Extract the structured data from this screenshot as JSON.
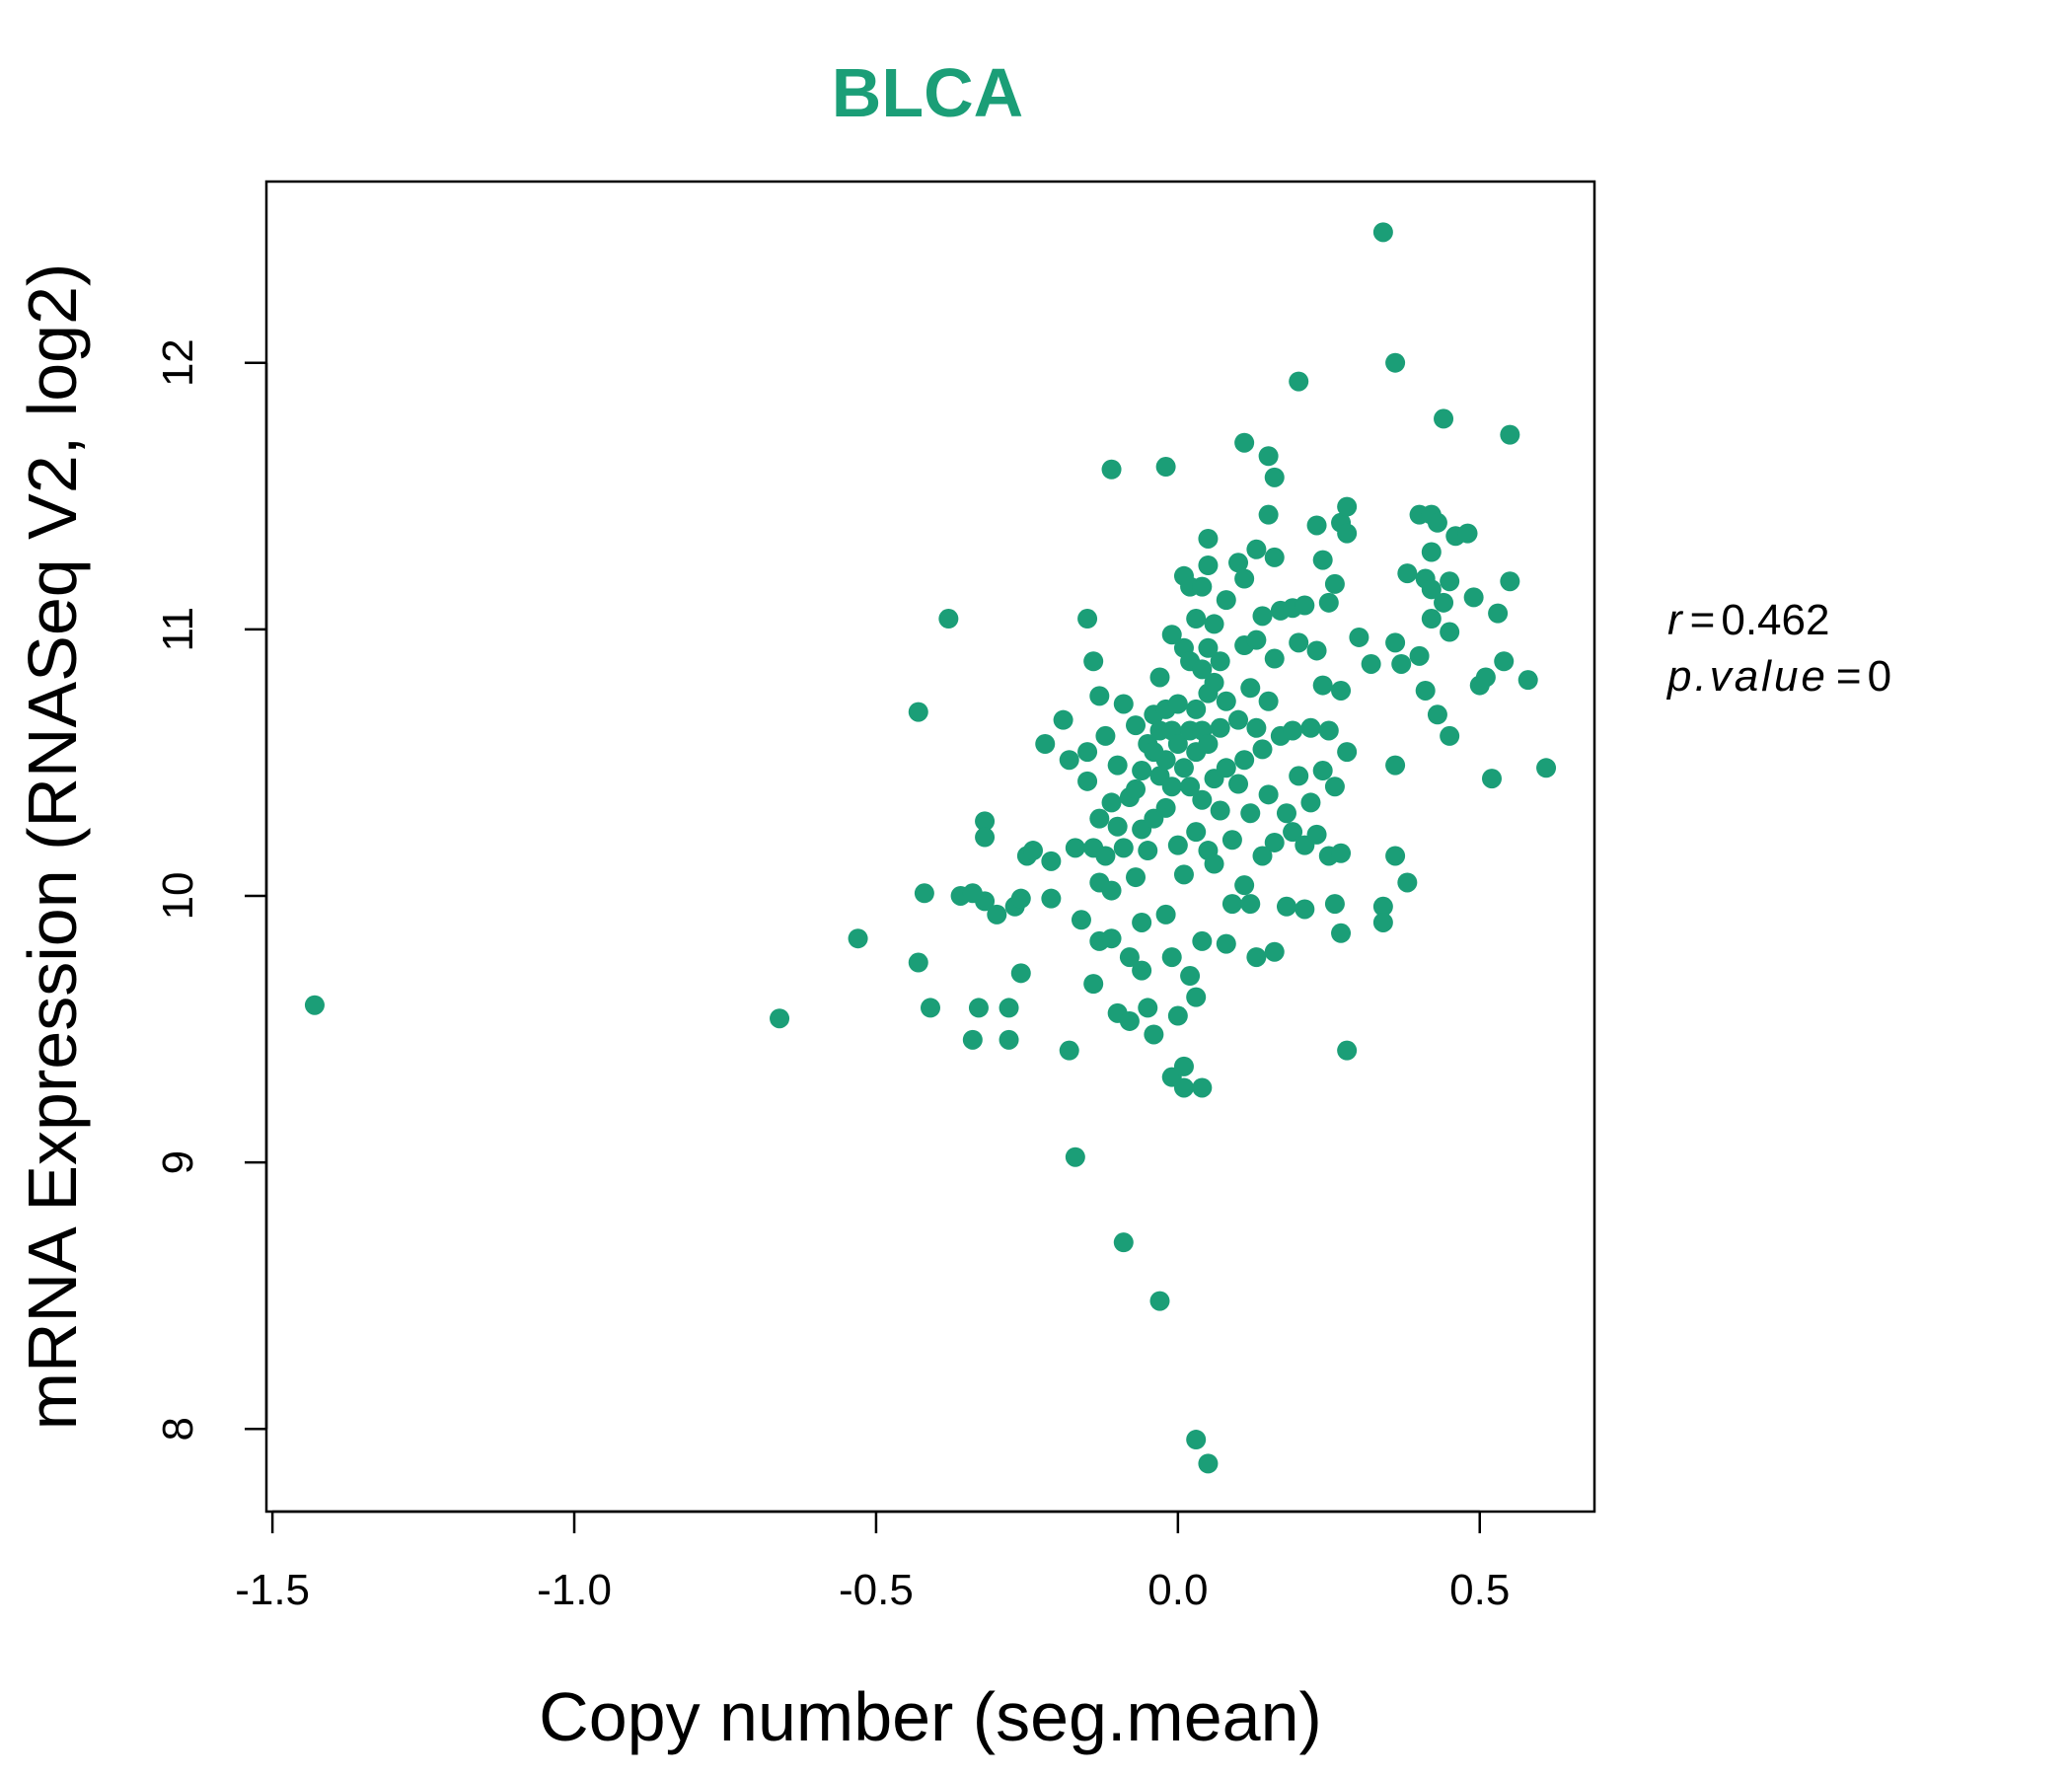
{
  "colors": {
    "accent": "#1B9E77",
    "axis": "#000000",
    "background": "#FFFFFF"
  },
  "stats": {
    "r_label": "r",
    "r_value": "0.462",
    "p_label": "p.value",
    "p_value": "0",
    "eq": "="
  },
  "chart_data": {
    "type": "scatter",
    "title": "BLCA",
    "xlabel": "Copy number (seg.mean)",
    "ylabel": "mRNA Expression (RNASeq V2, log2)",
    "xlim": [
      -1.51,
      0.69
    ],
    "ylim": [
      7.69,
      12.68
    ],
    "xticks": [
      -1.5,
      -1.0,
      -0.5,
      0.0,
      0.5
    ],
    "xtick_labels": [
      "-1.5",
      "-1.0",
      "-0.5",
      "0.0",
      "0.5"
    ],
    "yticks": [
      8,
      9,
      10,
      11,
      12
    ],
    "ytick_labels": [
      "8",
      "9",
      "10",
      "11",
      "12"
    ],
    "grid": false,
    "legend": "none",
    "points": [
      [
        -1.43,
        9.59
      ],
      [
        -0.66,
        9.54
      ],
      [
        -0.53,
        9.84
      ],
      [
        -0.43,
        10.69
      ],
      [
        -0.43,
        9.75
      ],
      [
        -0.42,
        10.01
      ],
      [
        -0.41,
        9.58
      ],
      [
        -0.38,
        11.04
      ],
      [
        -0.36,
        10.0
      ],
      [
        -0.34,
        10.01
      ],
      [
        -0.34,
        9.46
      ],
      [
        -0.33,
        9.58
      ],
      [
        -0.32,
        9.98
      ],
      [
        -0.32,
        10.28
      ],
      [
        -0.32,
        10.22
      ],
      [
        -0.3,
        9.93
      ],
      [
        -0.28,
        9.58
      ],
      [
        -0.28,
        9.46
      ],
      [
        -0.27,
        9.96
      ],
      [
        -0.26,
        9.71
      ],
      [
        -0.26,
        9.99
      ],
      [
        -0.25,
        10.15
      ],
      [
        -0.24,
        10.17
      ],
      [
        -0.22,
        10.57
      ],
      [
        -0.21,
        10.13
      ],
      [
        -0.21,
        9.99
      ],
      [
        -0.19,
        10.66
      ],
      [
        -0.18,
        10.51
      ],
      [
        -0.18,
        9.42
      ],
      [
        -0.17,
        9.02
      ],
      [
        -0.17,
        10.18
      ],
      [
        -0.16,
        9.91
      ],
      [
        -0.15,
        10.54
      ],
      [
        -0.15,
        10.43
      ],
      [
        -0.15,
        11.04
      ],
      [
        -0.14,
        10.88
      ],
      [
        -0.14,
        10.18
      ],
      [
        -0.14,
        9.67
      ],
      [
        -0.13,
        10.75
      ],
      [
        -0.13,
        10.29
      ],
      [
        -0.13,
        10.05
      ],
      [
        -0.13,
        9.83
      ],
      [
        -0.12,
        10.6
      ],
      [
        -0.12,
        10.15
      ],
      [
        -0.11,
        11.6
      ],
      [
        -0.11,
        10.35
      ],
      [
        -0.11,
        9.84
      ],
      [
        -0.11,
        10.02
      ],
      [
        -0.1,
        10.49
      ],
      [
        -0.1,
        10.26
      ],
      [
        -0.1,
        9.56
      ],
      [
        -0.09,
        10.72
      ],
      [
        -0.09,
        10.18
      ],
      [
        -0.09,
        8.7
      ],
      [
        -0.08,
        10.37
      ],
      [
        -0.08,
        9.77
      ],
      [
        -0.08,
        9.53
      ],
      [
        -0.07,
        10.64
      ],
      [
        -0.07,
        10.4
      ],
      [
        -0.07,
        10.07
      ],
      [
        -0.06,
        10.47
      ],
      [
        -0.06,
        10.25
      ],
      [
        -0.06,
        9.9
      ],
      [
        -0.06,
        9.72
      ],
      [
        -0.05,
        10.57
      ],
      [
        -0.05,
        10.17
      ],
      [
        -0.05,
        9.58
      ],
      [
        -0.04,
        10.68
      ],
      [
        -0.04,
        10.54
      ],
      [
        -0.04,
        10.29
      ],
      [
        -0.04,
        9.48
      ],
      [
        -0.03,
        10.82
      ],
      [
        -0.03,
        10.62
      ],
      [
        -0.03,
        10.45
      ],
      [
        -0.03,
        8.48
      ],
      [
        -0.02,
        11.61
      ],
      [
        -0.02,
        10.7
      ],
      [
        -0.02,
        10.51
      ],
      [
        -0.02,
        10.33
      ],
      [
        -0.02,
        9.93
      ],
      [
        -0.01,
        10.98
      ],
      [
        -0.01,
        10.62
      ],
      [
        -0.01,
        10.41
      ],
      [
        -0.01,
        9.77
      ],
      [
        -0.01,
        9.32
      ],
      [
        0.0,
        10.72
      ],
      [
        0.0,
        10.57
      ],
      [
        0.0,
        10.19
      ],
      [
        0.0,
        9.55
      ],
      [
        0.01,
        11.2
      ],
      [
        0.01,
        10.93
      ],
      [
        0.01,
        10.48
      ],
      [
        0.01,
        10.08
      ],
      [
        0.01,
        9.36
      ],
      [
        0.01,
        9.28
      ],
      [
        0.02,
        11.16
      ],
      [
        0.02,
        10.88
      ],
      [
        0.02,
        10.62
      ],
      [
        0.02,
        10.41
      ],
      [
        0.02,
        9.7
      ],
      [
        0.03,
        11.04
      ],
      [
        0.03,
        10.7
      ],
      [
        0.03,
        10.54
      ],
      [
        0.03,
        10.24
      ],
      [
        0.03,
        9.62
      ],
      [
        0.03,
        7.96
      ],
      [
        0.04,
        11.16
      ],
      [
        0.04,
        10.85
      ],
      [
        0.04,
        10.62
      ],
      [
        0.04,
        10.36
      ],
      [
        0.04,
        9.83
      ],
      [
        0.04,
        9.28
      ],
      [
        0.05,
        11.34
      ],
      [
        0.05,
        11.24
      ],
      [
        0.05,
        10.93
      ],
      [
        0.05,
        10.76
      ],
      [
        0.05,
        10.57
      ],
      [
        0.05,
        10.17
      ],
      [
        0.05,
        7.87
      ],
      [
        0.06,
        11.02
      ],
      [
        0.06,
        10.8
      ],
      [
        0.06,
        10.44
      ],
      [
        0.06,
        10.12
      ],
      [
        0.07,
        10.88
      ],
      [
        0.07,
        10.63
      ],
      [
        0.07,
        10.32
      ],
      [
        0.08,
        11.11
      ],
      [
        0.08,
        10.73
      ],
      [
        0.08,
        10.48
      ],
      [
        0.08,
        9.82
      ],
      [
        0.09,
        10.21
      ],
      [
        0.09,
        9.97
      ],
      [
        0.1,
        11.25
      ],
      [
        0.1,
        10.66
      ],
      [
        0.1,
        10.42
      ],
      [
        0.11,
        11.7
      ],
      [
        0.11,
        11.19
      ],
      [
        0.11,
        10.94
      ],
      [
        0.11,
        10.51
      ],
      [
        0.11,
        10.04
      ],
      [
        0.12,
        10.78
      ],
      [
        0.12,
        10.31
      ],
      [
        0.12,
        9.97
      ],
      [
        0.13,
        11.3
      ],
      [
        0.13,
        10.96
      ],
      [
        0.13,
        10.63
      ],
      [
        0.13,
        9.77
      ],
      [
        0.14,
        11.05
      ],
      [
        0.14,
        10.55
      ],
      [
        0.14,
        10.15
      ],
      [
        0.15,
        11.65
      ],
      [
        0.15,
        11.43
      ],
      [
        0.15,
        10.73
      ],
      [
        0.15,
        10.38
      ],
      [
        0.16,
        11.57
      ],
      [
        0.16,
        11.27
      ],
      [
        0.16,
        10.89
      ],
      [
        0.16,
        10.2
      ],
      [
        0.16,
        9.79
      ],
      [
        0.17,
        11.07
      ],
      [
        0.17,
        10.6
      ],
      [
        0.18,
        10.31
      ],
      [
        0.18,
        9.96
      ],
      [
        0.19,
        11.08
      ],
      [
        0.19,
        10.62
      ],
      [
        0.19,
        10.24
      ],
      [
        0.2,
        11.93
      ],
      [
        0.2,
        10.95
      ],
      [
        0.2,
        10.45
      ],
      [
        0.21,
        11.09
      ],
      [
        0.21,
        10.19
      ],
      [
        0.21,
        9.95
      ],
      [
        0.22,
        10.63
      ],
      [
        0.22,
        10.35
      ],
      [
        0.23,
        11.39
      ],
      [
        0.23,
        10.92
      ],
      [
        0.23,
        10.23
      ],
      [
        0.24,
        11.26
      ],
      [
        0.24,
        10.79
      ],
      [
        0.24,
        10.47
      ],
      [
        0.25,
        11.1
      ],
      [
        0.25,
        10.62
      ],
      [
        0.25,
        10.15
      ],
      [
        0.26,
        11.17
      ],
      [
        0.26,
        10.41
      ],
      [
        0.26,
        9.97
      ],
      [
        0.27,
        11.4
      ],
      [
        0.27,
        10.77
      ],
      [
        0.27,
        10.16
      ],
      [
        0.27,
        9.86
      ],
      [
        0.28,
        11.46
      ],
      [
        0.28,
        11.36
      ],
      [
        0.28,
        10.54
      ],
      [
        0.28,
        9.42
      ],
      [
        0.3,
        10.97
      ],
      [
        0.32,
        10.87
      ],
      [
        0.34,
        12.49
      ],
      [
        0.34,
        9.96
      ],
      [
        0.34,
        9.9
      ],
      [
        0.36,
        12.0
      ],
      [
        0.36,
        10.95
      ],
      [
        0.36,
        10.49
      ],
      [
        0.36,
        10.15
      ],
      [
        0.37,
        10.87
      ],
      [
        0.38,
        11.21
      ],
      [
        0.38,
        10.05
      ],
      [
        0.4,
        11.43
      ],
      [
        0.4,
        10.9
      ],
      [
        0.41,
        11.19
      ],
      [
        0.41,
        10.77
      ],
      [
        0.42,
        11.43
      ],
      [
        0.42,
        11.29
      ],
      [
        0.42,
        11.15
      ],
      [
        0.42,
        11.04
      ],
      [
        0.43,
        11.4
      ],
      [
        0.43,
        10.68
      ],
      [
        0.44,
        11.79
      ],
      [
        0.44,
        11.1
      ],
      [
        0.45,
        11.18
      ],
      [
        0.45,
        10.99
      ],
      [
        0.45,
        10.6
      ],
      [
        0.46,
        11.35
      ],
      [
        0.48,
        11.36
      ],
      [
        0.49,
        11.12
      ],
      [
        0.5,
        10.79
      ],
      [
        0.51,
        10.82
      ],
      [
        0.52,
        10.44
      ],
      [
        0.53,
        11.06
      ],
      [
        0.54,
        10.88
      ],
      [
        0.55,
        11.73
      ],
      [
        0.55,
        11.18
      ],
      [
        0.58,
        10.81
      ],
      [
        0.61,
        10.48
      ]
    ]
  }
}
